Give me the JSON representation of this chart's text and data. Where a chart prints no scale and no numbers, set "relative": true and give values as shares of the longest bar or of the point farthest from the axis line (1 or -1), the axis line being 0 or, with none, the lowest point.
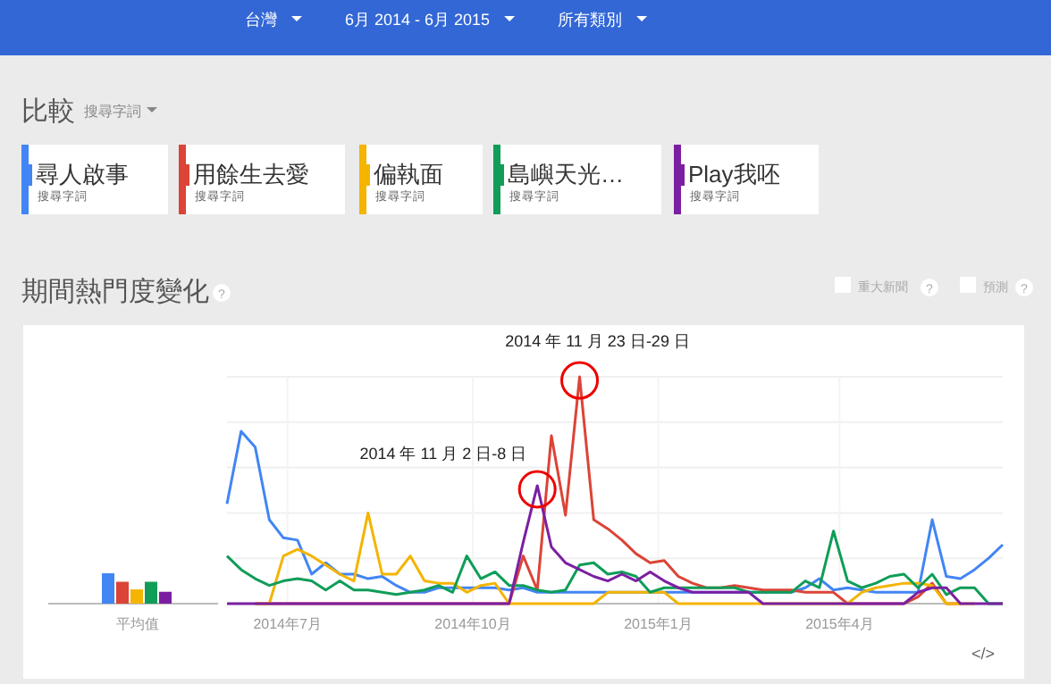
{
  "chart_data": [
    {
      "type": "line",
      "title": "期間熱門度變化",
      "relative": true,
      "grid": true,
      "legend": "top",
      "x": [
        "2014-06-01",
        "2014-06-08",
        "2014-06-15",
        "2014-06-22",
        "2014-06-29",
        "2014-07-06",
        "2014-07-13",
        "2014-07-20",
        "2014-07-27",
        "2014-08-03",
        "2014-08-10",
        "2014-08-17",
        "2014-08-24",
        "2014-08-31",
        "2014-09-07",
        "2014-09-14",
        "2014-09-21",
        "2014-09-28",
        "2014-10-05",
        "2014-10-12",
        "2014-10-19",
        "2014-10-26",
        "2014-11-02",
        "2014-11-09",
        "2014-11-16",
        "2014-11-23",
        "2014-11-30",
        "2014-12-07",
        "2014-12-14",
        "2014-12-21",
        "2014-12-28",
        "2015-01-04",
        "2015-01-11",
        "2015-01-18",
        "2015-01-25",
        "2015-02-01",
        "2015-02-08",
        "2015-02-15",
        "2015-02-22",
        "2015-03-01",
        "2015-03-08",
        "2015-03-15",
        "2015-03-22",
        "2015-03-29",
        "2015-04-05",
        "2015-04-12",
        "2015-04-19",
        "2015-04-26",
        "2015-05-03",
        "2015-05-10",
        "2015-05-17",
        "2015-05-24",
        "2015-05-31",
        "2015-06-07",
        "2015-06-14",
        "2015-06-21"
      ],
      "xlim": [
        "2014-06-01",
        "2015-06-21"
      ],
      "xticks": [
        {
          "value": "2014-07-01",
          "label": "2014年7月"
        },
        {
          "value": "2014-10-01",
          "label": "2014年10月"
        },
        {
          "value": "2015-01-01",
          "label": "2015年1月"
        },
        {
          "value": "2015-04-01",
          "label": "2015年4月"
        }
      ],
      "series": [
        {
          "name": "尋人啟事",
          "color": "#4285f4",
          "values": [
            0.44,
            0.76,
            0.69,
            0.37,
            0.29,
            0.28,
            0.13,
            0.18,
            0.13,
            0.13,
            0.11,
            0.12,
            0.08,
            0.05,
            0.05,
            0.07,
            0.07,
            0.07,
            0.07,
            0.07,
            0.06,
            0.07,
            0.05,
            0.05,
            0.05,
            0.05,
            0.05,
            0.05,
            0.05,
            0.05,
            0.05,
            0.05,
            0.05,
            0.05,
            0.05,
            0.05,
            0.05,
            0.05,
            0.05,
            0.05,
            0.05,
            0.07,
            0.11,
            0.06,
            0.07,
            0.06,
            0.05,
            0.05,
            0.05,
            0.05,
            0.37,
            0.12,
            0.11,
            0.15,
            0.2,
            0.26
          ]
        },
        {
          "name": "用餘生去愛",
          "color": "#db4437",
          "values": [
            null,
            null,
            0,
            0,
            0,
            0,
            0,
            0,
            0,
            0,
            0,
            0,
            0,
            0,
            0,
            0,
            0,
            0,
            0,
            0,
            0,
            0.21,
            0.06,
            0.74,
            0.39,
            1,
            0.37,
            0.33,
            0.28,
            0.22,
            0.18,
            0.19,
            0.12,
            0.09,
            0.07,
            0.07,
            0.08,
            0.07,
            0.06,
            0.06,
            0.06,
            0.05,
            0.05,
            0.05,
            0,
            0,
            0,
            0,
            0,
            0.03,
            0.09,
            0,
            0,
            null,
            null,
            null
          ]
        },
        {
          "name": "偏執面",
          "color": "#f4b400",
          "values": [
            null,
            null,
            0,
            0,
            0.21,
            0.24,
            0.21,
            0.17,
            0.13,
            0.1,
            0.4,
            0.13,
            0.13,
            0.21,
            0.1,
            0.09,
            0.09,
            0.05,
            0.08,
            0.09,
            0,
            0,
            0,
            0,
            0,
            0,
            0,
            0.05,
            0.05,
            0.05,
            0.05,
            0.05,
            0,
            0,
            0,
            0,
            0,
            0,
            0,
            0,
            0,
            0,
            0,
            0,
            0,
            0.05,
            0.07,
            0.08,
            0.09,
            0.09,
            0.08,
            0,
            0,
            0,
            null,
            null
          ]
        },
        {
          "name": "島嶼天光…",
          "color": "#0f9d58",
          "values": [
            0.21,
            0.15,
            0.11,
            0.08,
            0.1,
            0.11,
            0.1,
            0.06,
            0.1,
            0.06,
            0.06,
            0.05,
            0.04,
            0.05,
            0.06,
            0.08,
            0.05,
            0.21,
            0.11,
            0.14,
            0.08,
            0.08,
            0.06,
            0.05,
            0.06,
            0.17,
            0.18,
            0.13,
            0.14,
            0.12,
            0.05,
            0.07,
            0.07,
            0.07,
            0.07,
            0.07,
            0.07,
            0.05,
            0.05,
            0.05,
            0.05,
            0.1,
            0.07,
            0.32,
            0.1,
            0.07,
            0.09,
            0.12,
            0.13,
            0.07,
            0.13,
            0.04,
            0.07,
            0.07,
            0,
            0
          ]
        },
        {
          "name": "Play我呸",
          "color": "#7b1fa2",
          "values": [
            0,
            0,
            0,
            0,
            0,
            0,
            0,
            0,
            0,
            0,
            0,
            0,
            0,
            0,
            0,
            0,
            0,
            0,
            0,
            0,
            0,
            0.27,
            0.52,
            0.25,
            0.18,
            0.15,
            0.12,
            0.1,
            0.13,
            0.1,
            0.14,
            0.1,
            0.07,
            0.05,
            0.05,
            0.05,
            0.05,
            0.05,
            0,
            0,
            0,
            0,
            0,
            0,
            0,
            0,
            0,
            0,
            0,
            0.05,
            0.07,
            0.07,
            0,
            0,
            0,
            0
          ]
        }
      ],
      "annotations": [
        "台灣",
        "6月 2014 - 6月 2015",
        "所有類別",
        "比較",
        "搜尋字詞",
        "搜尋字詞",
        "搜尋字詞",
        "搜尋字詞",
        "搜尋字詞",
        "搜尋字詞",
        "?",
        "重大新聞",
        "?",
        "預測",
        "?",
        "</>",
        {
          "text": "2014 年 11 月 2 日-8 日",
          "x": "2014-11-02",
          "y": 0.52
        },
        {
          "text": "2014 年 11 月 23 日-29 日",
          "x": "2014-11-23",
          "y": 1
        }
      ]
    },
    {
      "type": "bar",
      "relative": true,
      "categories": [
        "平均值"
      ],
      "series": [
        {
          "color": "#4285f4",
          "values": [
            1
          ]
        },
        {
          "color": "#db4437",
          "values": [
            0.72
          ]
        },
        {
          "color": "#f4b400",
          "values": [
            0.47
          ]
        },
        {
          "color": "#0f9d58",
          "values": [
            0.72
          ]
        },
        {
          "color": "#7b1fa2",
          "values": [
            0.39
          ]
        }
      ]
    }
  ]
}
